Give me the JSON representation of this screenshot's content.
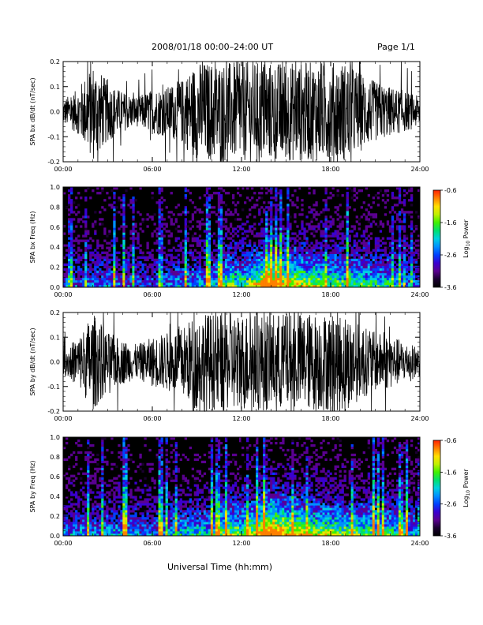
{
  "header": {
    "title": "2008/01/18  00:00–24:00 UT",
    "page": "Page 1/1"
  },
  "bottom_xlabel": "Universal Time (hh:mm)",
  "colorbar": {
    "label_prefix": "Log",
    "label_sub": "10",
    "label_suffix": " Power",
    "ticks": [
      "-0.6",
      "-1.6",
      "-2.6",
      "-3.6"
    ],
    "colors": [
      "#000000",
      "#1a0030",
      "#5a0090",
      "#3a00d0",
      "#0040ff",
      "#0090ff",
      "#00d0e0",
      "#00e070",
      "#40f000",
      "#c0f000",
      "#ffe000",
      "#ff8000",
      "#ff2000"
    ]
  },
  "chart_data": [
    {
      "type": "line",
      "ylabel": "SPA bx dB/dt (nT/sec)",
      "x_ticks": [
        "00:00",
        "06:00",
        "12:00",
        "18:00",
        "24:00"
      ],
      "y_ticks": [
        "0.2",
        "0.1",
        "0.0",
        "-0.1",
        "-0.2"
      ],
      "xlim": [
        0,
        24
      ],
      "ylim": [
        -0.2,
        0.2
      ],
      "envelope": {
        "hours": [
          0,
          1,
          2,
          3,
          4,
          5,
          6,
          7,
          8,
          9,
          10,
          11,
          12,
          13,
          14,
          15,
          16,
          17,
          18,
          19,
          20,
          21,
          22,
          23,
          24
        ],
        "amplitude": [
          0.05,
          0.09,
          0.2,
          0.12,
          0.08,
          0.06,
          0.09,
          0.1,
          0.13,
          0.2,
          0.2,
          0.2,
          0.2,
          0.2,
          0.2,
          0.2,
          0.2,
          0.2,
          0.2,
          0.2,
          0.16,
          0.12,
          0.1,
          0.08,
          0.06
        ]
      }
    },
    {
      "type": "heatmap",
      "ylabel": "SPA bx Freq (Hz)",
      "x_ticks": [
        "00:00",
        "06:00",
        "12:00",
        "18:00",
        "24:00"
      ],
      "y_ticks": [
        "1.0",
        "0.8",
        "0.6",
        "0.4",
        "0.2",
        "0.0"
      ],
      "xlim": [
        0,
        24
      ],
      "ylim": [
        0,
        1.0
      ],
      "zlim": [
        -3.6,
        -0.6
      ],
      "activity_hours": [
        0,
        2,
        4,
        6,
        8,
        10,
        11,
        12,
        13,
        14,
        15,
        16,
        18,
        20,
        22,
        24
      ],
      "activity_level": [
        0.3,
        0.35,
        0.35,
        0.3,
        0.4,
        0.45,
        0.6,
        0.55,
        0.7,
        0.95,
        0.75,
        0.7,
        0.6,
        0.55,
        0.5,
        0.3
      ]
    },
    {
      "type": "line",
      "ylabel": "SPA by dB/dt (nT/sec)",
      "x_ticks": [
        "00:00",
        "06:00",
        "12:00",
        "18:00",
        "24:00"
      ],
      "y_ticks": [
        "0.2",
        "0.1",
        "0.0",
        "-0.1",
        "-0.2"
      ],
      "xlim": [
        0,
        24
      ],
      "ylim": [
        -0.2,
        0.2
      ],
      "envelope": {
        "hours": [
          0,
          1,
          2,
          3,
          4,
          5,
          6,
          7,
          8,
          9,
          10,
          11,
          12,
          13,
          14,
          15,
          16,
          17,
          18,
          19,
          20,
          21,
          22,
          23,
          24
        ],
        "amplitude": [
          0.05,
          0.1,
          0.2,
          0.12,
          0.09,
          0.07,
          0.1,
          0.12,
          0.14,
          0.2,
          0.2,
          0.2,
          0.2,
          0.2,
          0.2,
          0.2,
          0.2,
          0.2,
          0.2,
          0.2,
          0.15,
          0.12,
          0.11,
          0.08,
          0.06
        ]
      }
    },
    {
      "type": "heatmap",
      "ylabel": "SPA by Freq (Hz)",
      "x_ticks": [
        "00:00",
        "06:00",
        "12:00",
        "18:00",
        "24:00"
      ],
      "y_ticks": [
        "1.0",
        "0.8",
        "0.6",
        "0.4",
        "0.2",
        "0.0"
      ],
      "xlim": [
        0,
        24
      ],
      "ylim": [
        0,
        1.0
      ],
      "zlim": [
        -3.6,
        -0.6
      ],
      "activity_hours": [
        0,
        2,
        4,
        6,
        8,
        10,
        11,
        12,
        13,
        14,
        15,
        16,
        18,
        20,
        22,
        24
      ],
      "activity_level": [
        0.35,
        0.4,
        0.4,
        0.35,
        0.45,
        0.5,
        0.65,
        0.6,
        0.75,
        1.0,
        0.8,
        0.75,
        0.65,
        0.6,
        0.55,
        0.35
      ]
    }
  ]
}
